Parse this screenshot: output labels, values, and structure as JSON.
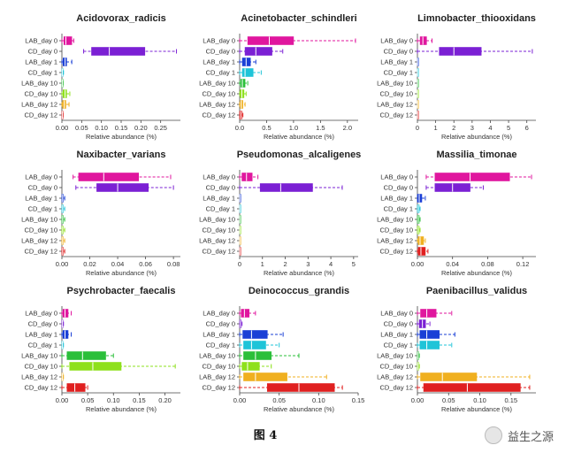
{
  "figure": {
    "caption": "图 4",
    "watermark": "益生之源"
  },
  "chart_data": [
    {
      "type": "boxplot",
      "title": "Acidovorax_radicis",
      "xlabel": "Relative abundance (%)",
      "xlim": [
        0,
        0.3
      ],
      "ticks": [
        0.0,
        0.05,
        0.1,
        0.15,
        0.2,
        0.25
      ],
      "categories": [
        "LAB_day 0",
        "CD_day 0",
        "LAB_day 1",
        "CD_day 1",
        "LAB_day 10",
        "CD_day 10",
        "LAB_day 12",
        "CD_day 12"
      ],
      "boxes": [
        {
          "color": "#e0169e",
          "min": 0.0,
          "q1": 0.005,
          "median": 0.01,
          "q3": 0.025,
          "max": 0.03
        },
        {
          "color": "#7b20d4",
          "min": 0.055,
          "q1": 0.075,
          "median": 0.12,
          "q3": 0.21,
          "max": 0.29
        },
        {
          "color": "#1a3fd6",
          "min": 0.0,
          "q1": 0.003,
          "median": 0.008,
          "q3": 0.012,
          "max": 0.025
        },
        {
          "color": "#1fc4d8",
          "min": 0.0,
          "q1": 0.0,
          "median": 0.001,
          "q3": 0.002,
          "max": 0.004
        },
        {
          "color": "#2bbf3a",
          "min": 0.0,
          "q1": 0.0,
          "median": 0.001,
          "q3": 0.002,
          "max": 0.003
        },
        {
          "color": "#8ee01c",
          "min": 0.0,
          "q1": 0.003,
          "median": 0.008,
          "q3": 0.012,
          "max": 0.02
        },
        {
          "color": "#f0b020",
          "min": 0.0,
          "q1": 0.002,
          "median": 0.006,
          "q3": 0.01,
          "max": 0.018
        },
        {
          "color": "#e02020",
          "min": 0.0,
          "q1": 0.0,
          "median": 0.001,
          "q3": 0.002,
          "max": 0.003
        }
      ]
    },
    {
      "type": "boxplot",
      "title": "Acinetobacter_schindleri",
      "xlabel": "Relative abundance (%)",
      "xlim": [
        0,
        2.2
      ],
      "ticks": [
        0.0,
        0.5,
        1.0,
        1.5,
        2.0
      ],
      "categories": [
        "LAB_day 0",
        "CD_day 0",
        "LAB_day 1",
        "CD_day 1",
        "LAB_day 10",
        "CD_day 10",
        "LAB_day 12",
        "CD_day 12"
      ],
      "boxes": [
        {
          "color": "#e0169e",
          "min": 0.0,
          "q1": 0.15,
          "median": 0.55,
          "q3": 1.0,
          "max": 2.15
        },
        {
          "color": "#7b20d4",
          "min": 0.0,
          "q1": 0.1,
          "median": 0.3,
          "q3": 0.6,
          "max": 0.8
        },
        {
          "color": "#1a3fd6",
          "min": 0.0,
          "q1": 0.05,
          "median": 0.12,
          "q3": 0.2,
          "max": 0.3
        },
        {
          "color": "#1fc4d8",
          "min": 0.0,
          "q1": 0.05,
          "median": 0.1,
          "q3": 0.25,
          "max": 0.4
        },
        {
          "color": "#2bbf3a",
          "min": 0.0,
          "q1": 0.02,
          "median": 0.05,
          "q3": 0.1,
          "max": 0.15
        },
        {
          "color": "#8ee01c",
          "min": 0.0,
          "q1": 0.01,
          "median": 0.04,
          "q3": 0.08,
          "max": 0.12
        },
        {
          "color": "#f0b020",
          "min": 0.0,
          "q1": 0.01,
          "median": 0.03,
          "q3": 0.06,
          "max": 0.1
        },
        {
          "color": "#e02020",
          "min": 0.0,
          "q1": 0.0,
          "median": 0.02,
          "q3": 0.04,
          "max": 0.06
        }
      ]
    },
    {
      "type": "boxplot",
      "title": "Limnobacter_thiooxidans",
      "xlabel": "Relative abundance (%)",
      "xlim": [
        0,
        6.5
      ],
      "ticks": [
        0,
        1,
        2,
        3,
        4,
        5,
        6
      ],
      "categories": [
        "LAB_day 0",
        "CD_day 0",
        "LAB_day 1",
        "CD_day 1",
        "LAB_day 10",
        "CD_day 10",
        "LAB_day 12",
        "CD_day 12"
      ],
      "boxes": [
        {
          "color": "#e0169e",
          "min": 0.0,
          "q1": 0.15,
          "median": 0.3,
          "q3": 0.5,
          "max": 0.8
        },
        {
          "color": "#7b20d4",
          "min": 0.0,
          "q1": 1.2,
          "median": 2.0,
          "q3": 3.5,
          "max": 6.3
        },
        {
          "color": "#1a3fd6",
          "min": 0.0,
          "q1": 0.0,
          "median": 0.01,
          "q3": 0.02,
          "max": 0.04
        },
        {
          "color": "#1fc4d8",
          "min": 0.0,
          "q1": 0.0,
          "median": 0.01,
          "q3": 0.02,
          "max": 0.04
        },
        {
          "color": "#2bbf3a",
          "min": 0.0,
          "q1": 0.0,
          "median": 0.01,
          "q3": 0.02,
          "max": 0.03
        },
        {
          "color": "#8ee01c",
          "min": 0.0,
          "q1": 0.0,
          "median": 0.01,
          "q3": 0.02,
          "max": 0.03
        },
        {
          "color": "#f0b020",
          "min": 0.0,
          "q1": 0.0,
          "median": 0.01,
          "q3": 0.02,
          "max": 0.03
        },
        {
          "color": "#e02020",
          "min": 0.0,
          "q1": 0.0,
          "median": 0.01,
          "q3": 0.02,
          "max": 0.03
        }
      ]
    },
    {
      "type": "boxplot",
      "title": "Naxibacter_varians",
      "xlabel": "Relative abundance (%)",
      "xlim": [
        0,
        0.085
      ],
      "ticks": [
        0.0,
        0.02,
        0.04,
        0.06,
        0.08
      ],
      "categories": [
        "LAB_day 0",
        "CD_day 0",
        "LAB_day 1",
        "CD_day 1",
        "LAB_day 10",
        "CD_day 10",
        "LAB_day 12",
        "CD_day 12"
      ],
      "boxes": [
        {
          "color": "#e0169e",
          "min": 0.008,
          "q1": 0.012,
          "median": 0.03,
          "q3": 0.055,
          "max": 0.078
        },
        {
          "color": "#7b20d4",
          "min": 0.01,
          "q1": 0.025,
          "median": 0.04,
          "q3": 0.062,
          "max": 0.08
        },
        {
          "color": "#1a3fd6",
          "min": 0.0,
          "q1": 0.0,
          "median": 0.0005,
          "q3": 0.001,
          "max": 0.002
        },
        {
          "color": "#1fc4d8",
          "min": 0.0,
          "q1": 0.0,
          "median": 0.0005,
          "q3": 0.001,
          "max": 0.002
        },
        {
          "color": "#2bbf3a",
          "min": 0.0,
          "q1": 0.0,
          "median": 0.0005,
          "q3": 0.001,
          "max": 0.002
        },
        {
          "color": "#8ee01c",
          "min": 0.0,
          "q1": 0.0,
          "median": 0.0005,
          "q3": 0.001,
          "max": 0.002
        },
        {
          "color": "#f0b020",
          "min": 0.0,
          "q1": 0.0,
          "median": 0.0005,
          "q3": 0.001,
          "max": 0.002
        },
        {
          "color": "#e02020",
          "min": 0.0,
          "q1": 0.0,
          "median": 0.0005,
          "q3": 0.001,
          "max": 0.002
        }
      ]
    },
    {
      "type": "boxplot",
      "title": "Pseudomonas_alcaligenes",
      "xlabel": "Relative abundance (%)",
      "xlim": [
        0,
        5.2
      ],
      "ticks": [
        0,
        1,
        2,
        3,
        4,
        5
      ],
      "categories": [
        "LAB_day 0",
        "CD_day 0",
        "LAB_day 1",
        "CD_day 1",
        "LAB_day 10",
        "CD_day 10",
        "LAB_day 12",
        "CD_day 12"
      ],
      "boxes": [
        {
          "color": "#e0169e",
          "min": 0.0,
          "q1": 0.1,
          "median": 0.3,
          "q3": 0.55,
          "max": 0.8
        },
        {
          "color": "#7b20d4",
          "min": 0.0,
          "q1": 0.9,
          "median": 1.8,
          "q3": 3.2,
          "max": 4.5
        },
        {
          "color": "#1a3fd6",
          "min": 0.0,
          "q1": 0.0,
          "median": 0.01,
          "q3": 0.02,
          "max": 0.04
        },
        {
          "color": "#1fc4d8",
          "min": 0.0,
          "q1": 0.0,
          "median": 0.01,
          "q3": 0.02,
          "max": 0.04
        },
        {
          "color": "#2bbf3a",
          "min": 0.0,
          "q1": 0.0,
          "median": 0.01,
          "q3": 0.02,
          "max": 0.03
        },
        {
          "color": "#8ee01c",
          "min": 0.0,
          "q1": 0.0,
          "median": 0.01,
          "q3": 0.02,
          "max": 0.03
        },
        {
          "color": "#f0b020",
          "min": 0.0,
          "q1": 0.0,
          "median": 0.01,
          "q3": 0.02,
          "max": 0.03
        },
        {
          "color": "#e02020",
          "min": 0.0,
          "q1": 0.0,
          "median": 0.01,
          "q3": 0.02,
          "max": 0.03
        }
      ]
    },
    {
      "type": "boxplot",
      "title": "Massilia_timonae",
      "xlabel": "Relative abundance (%)",
      "xlim": [
        0,
        0.135
      ],
      "ticks": [
        0.0,
        0.04,
        0.08,
        0.12
      ],
      "categories": [
        "LAB_day 0",
        "CD_day 0",
        "LAB_day 1",
        "CD_day 1",
        "LAB_day 10",
        "CD_day 10",
        "LAB_day 12",
        "CD_day 12"
      ],
      "boxes": [
        {
          "color": "#e0169e",
          "min": 0.01,
          "q1": 0.02,
          "median": 0.06,
          "q3": 0.105,
          "max": 0.13
        },
        {
          "color": "#7b20d4",
          "min": 0.01,
          "q1": 0.02,
          "median": 0.04,
          "q3": 0.06,
          "max": 0.075
        },
        {
          "color": "#1a3fd6",
          "min": 0.0,
          "q1": 0.0,
          "median": 0.002,
          "q3": 0.005,
          "max": 0.009
        },
        {
          "color": "#1fc4d8",
          "min": 0.0,
          "q1": 0.0,
          "median": 0.001,
          "q3": 0.002,
          "max": 0.003
        },
        {
          "color": "#2bbf3a",
          "min": 0.0,
          "q1": 0.0,
          "median": 0.001,
          "q3": 0.002,
          "max": 0.003
        },
        {
          "color": "#8ee01c",
          "min": 0.0,
          "q1": 0.0,
          "median": 0.001,
          "q3": 0.002,
          "max": 0.003
        },
        {
          "color": "#f0b020",
          "min": 0.0,
          "q1": 0.001,
          "median": 0.003,
          "q3": 0.007,
          "max": 0.009
        },
        {
          "color": "#e02020",
          "min": 0.0,
          "q1": 0.001,
          "median": 0.004,
          "q3": 0.009,
          "max": 0.012
        }
      ]
    },
    {
      "type": "boxplot",
      "title": "Psychrobacter_faecalis",
      "xlabel": "Relative abundance (%)",
      "xlim": [
        0,
        0.23
      ],
      "ticks": [
        0.0,
        0.05,
        0.1,
        0.15,
        0.2
      ],
      "categories": [
        "LAB_day 0",
        "CD_day 0",
        "LAB_day 1",
        "CD_day 1",
        "LAB_day 10",
        "CD_day 10",
        "LAB_day 12",
        "CD_day 12"
      ],
      "boxes": [
        {
          "color": "#e0169e",
          "min": 0.0,
          "q1": 0.002,
          "median": 0.006,
          "q3": 0.012,
          "max": 0.018
        },
        {
          "color": "#7b20d4",
          "min": 0.0,
          "q1": 0.0,
          "median": 0.001,
          "q3": 0.002,
          "max": 0.003
        },
        {
          "color": "#1a3fd6",
          "min": 0.0,
          "q1": 0.002,
          "median": 0.006,
          "q3": 0.012,
          "max": 0.018
        },
        {
          "color": "#1fc4d8",
          "min": 0.0,
          "q1": 0.0,
          "median": 0.001,
          "q3": 0.002,
          "max": 0.003
        },
        {
          "color": "#2bbf3a",
          "min": 0.0,
          "q1": 0.01,
          "median": 0.04,
          "q3": 0.085,
          "max": 0.1
        },
        {
          "color": "#8ee01c",
          "min": 0.0,
          "q1": 0.015,
          "median": 0.06,
          "q3": 0.115,
          "max": 0.22
        },
        {
          "color": "#f0b020",
          "min": 0.0,
          "q1": 0.0,
          "median": 0.001,
          "q3": 0.002,
          "max": 0.003
        },
        {
          "color": "#e02020",
          "min": 0.0,
          "q1": 0.01,
          "median": 0.025,
          "q3": 0.045,
          "max": 0.05
        }
      ]
    },
    {
      "type": "boxplot",
      "title": "Deinococcus_grandis",
      "xlabel": "Relative abundance (%)",
      "xlim": [
        0,
        0.15
      ],
      "ticks": [
        0.0,
        0.05,
        0.1,
        0.15
      ],
      "categories": [
        "LAB_day 0",
        "CD_day 0",
        "LAB_day 1",
        "CD_day 1",
        "LAB_day 10",
        "CD_day 10",
        "LAB_day 12",
        "CD_day 12"
      ],
      "boxes": [
        {
          "color": "#e0169e",
          "min": 0.0,
          "q1": 0.002,
          "median": 0.006,
          "q3": 0.012,
          "max": 0.02
        },
        {
          "color": "#7b20d4",
          "min": 0.0,
          "q1": 0.0,
          "median": 0.001,
          "q3": 0.002,
          "max": 0.003
        },
        {
          "color": "#1a3fd6",
          "min": 0.0,
          "q1": 0.004,
          "median": 0.015,
          "q3": 0.035,
          "max": 0.055
        },
        {
          "color": "#1fc4d8",
          "min": 0.0,
          "q1": 0.005,
          "median": 0.015,
          "q3": 0.033,
          "max": 0.05
        },
        {
          "color": "#2bbf3a",
          "min": 0.0,
          "q1": 0.005,
          "median": 0.02,
          "q3": 0.04,
          "max": 0.075
        },
        {
          "color": "#8ee01c",
          "min": 0.0,
          "q1": 0.003,
          "median": 0.01,
          "q3": 0.025,
          "max": 0.04
        },
        {
          "color": "#f0b020",
          "min": 0.0,
          "q1": 0.005,
          "median": 0.02,
          "q3": 0.06,
          "max": 0.11
        },
        {
          "color": "#e02020",
          "min": 0.0,
          "q1": 0.035,
          "median": 0.075,
          "q3": 0.12,
          "max": 0.13
        }
      ]
    },
    {
      "type": "boxplot",
      "title": "Paenibacillus_validus",
      "xlabel": "Relative abundance (%)",
      "xlim": [
        0,
        0.19
      ],
      "ticks": [
        0.0,
        0.05,
        0.1,
        0.15
      ],
      "categories": [
        "LAB_day 0",
        "CD_day 0",
        "LAB_day 1",
        "CD_day 1",
        "LAB_day 10",
        "CD_day 10",
        "LAB_day 12",
        "CD_day 12"
      ],
      "boxes": [
        {
          "color": "#e0169e",
          "min": 0.0,
          "q1": 0.005,
          "median": 0.015,
          "q3": 0.03,
          "max": 0.055
        },
        {
          "color": "#7b20d4",
          "min": 0.0,
          "q1": 0.003,
          "median": 0.008,
          "q3": 0.013,
          "max": 0.02
        },
        {
          "color": "#1a3fd6",
          "min": 0.0,
          "q1": 0.004,
          "median": 0.015,
          "q3": 0.035,
          "max": 0.06
        },
        {
          "color": "#1fc4d8",
          "min": 0.0,
          "q1": 0.004,
          "median": 0.015,
          "q3": 0.035,
          "max": 0.055
        },
        {
          "color": "#2bbf3a",
          "min": 0.0,
          "q1": 0.0,
          "median": 0.001,
          "q3": 0.002,
          "max": 0.003
        },
        {
          "color": "#8ee01c",
          "min": 0.0,
          "q1": 0.0,
          "median": 0.001,
          "q3": 0.002,
          "max": 0.003
        },
        {
          "color": "#f0b020",
          "min": 0.0,
          "q1": 0.005,
          "median": 0.04,
          "q3": 0.095,
          "max": 0.18
        },
        {
          "color": "#e02020",
          "min": 0.0,
          "q1": 0.01,
          "median": 0.08,
          "q3": 0.165,
          "max": 0.18
        }
      ]
    }
  ]
}
